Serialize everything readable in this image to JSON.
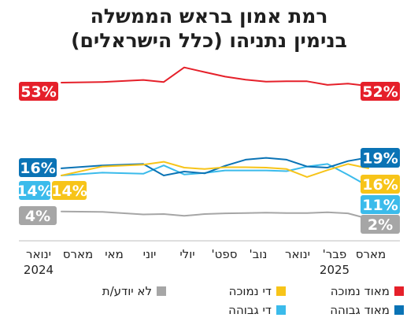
{
  "header": {
    "title_line1": "רמת אמון בראש הממשלה",
    "title_line2": "בנימין נתניהו (כלל הישראלים)"
  },
  "chart_data": {
    "type": "line",
    "title": "רמת אמון בראש הממשלה בנימין נתניהו (כלל הישראלים)",
    "x_labels": [
      {
        "month": "ינואר",
        "year": "2024"
      },
      {
        "month": "מארס",
        "year": ""
      },
      {
        "month": "מאי",
        "year": ""
      },
      {
        "month": "יוני",
        "year": ""
      },
      {
        "month": "יולי",
        "year": ""
      },
      {
        "month": "ספט'",
        "year": ""
      },
      {
        "month": "נוב'",
        "year": ""
      },
      {
        "month": "ינואר",
        "year": ""
      },
      {
        "month": "פבר'",
        "year": "2025"
      },
      {
        "month": "מארס",
        "year": ""
      }
    ],
    "x": [
      0,
      2,
      4,
      5,
      6,
      7,
      8,
      9,
      10,
      11,
      12,
      13,
      14,
      15
    ],
    "ylim": [
      0,
      60
    ],
    "grid": false,
    "legend_position": "bottom",
    "series": [
      {
        "name": "מאוד נמוכה",
        "color": "#e5202a",
        "start_label": "53%",
        "end_label": "52%",
        "values": [
          53,
          53.2,
          53.8,
          53.2,
          57.6,
          56.2,
          54.8,
          53.9,
          53.3,
          53.4,
          53.4,
          52.3,
          52.7,
          52
        ]
      },
      {
        "name": "די נמוכה",
        "color": "#f7c419",
        "start_label": "14%",
        "end_label": "16%",
        "values": [
          14,
          16.5,
          17,
          17.8,
          16.2,
          15.8,
          16.3,
          16.3,
          16.2,
          15.8,
          13.6,
          15.5,
          17.2,
          16
        ]
      },
      {
        "name": "מאוד גבוהה",
        "color": "#0a73b5",
        "start_label": "16%",
        "end_label": "19%",
        "values": [
          16,
          16.8,
          17.2,
          14,
          15.1,
          14.6,
          16.7,
          18.4,
          18.9,
          18.4,
          16.5,
          16.2,
          18,
          19
        ]
      },
      {
        "name": "די גבוהה",
        "color": "#3bbbeb",
        "start_label": "14%",
        "end_label": "11%",
        "values": [
          14,
          14.8,
          14.5,
          16.8,
          14.3,
          14.7,
          15.4,
          15.4,
          15.4,
          15.2,
          16.5,
          17.2,
          14.2,
          11
        ]
      },
      {
        "name": "לא יודע/ת",
        "color": "#a6a6a6",
        "start_label": "4%",
        "end_label": "2%",
        "values": [
          4,
          3.9,
          3.2,
          3.3,
          2.8,
          3.3,
          3.5,
          3.6,
          3.7,
          3.6,
          3.6,
          3.8,
          3.5,
          2
        ]
      }
    ]
  },
  "legend": {
    "items": [
      {
        "label": "מאוד נמוכה",
        "color": "#e5202a"
      },
      {
        "label": "די נמוכה",
        "color": "#f7c419"
      },
      {
        "label": "לא יודע/ת",
        "color": "#a6a6a6"
      },
      {
        "label": "מאוד גבוהה",
        "color": "#0a73b5"
      },
      {
        "label": "די גבוהה",
        "color": "#3bbbeb"
      }
    ]
  }
}
